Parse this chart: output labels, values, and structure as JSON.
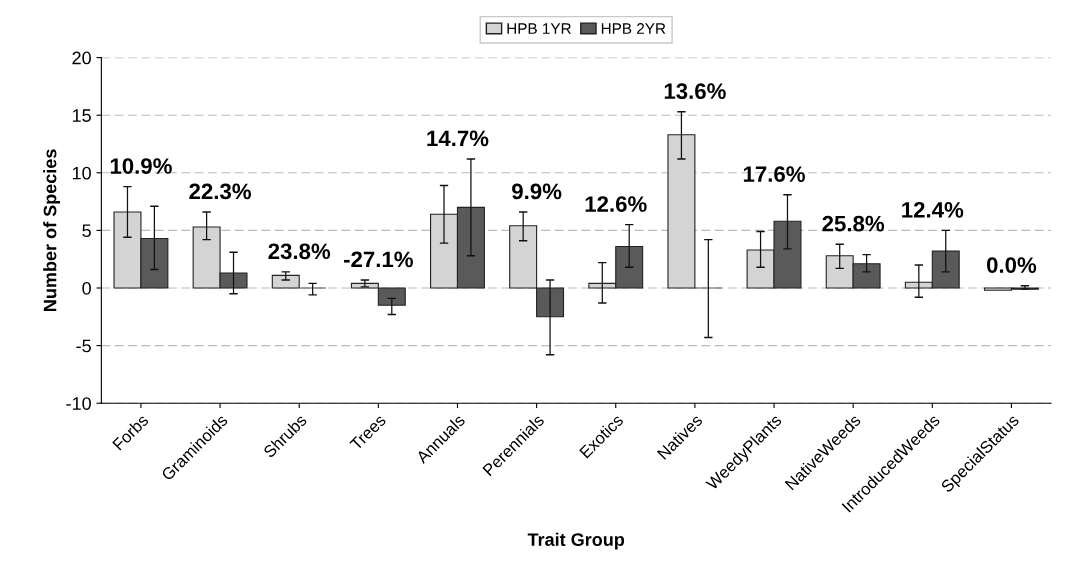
{
  "chart_data": {
    "type": "bar",
    "xlabel": "Trait Group",
    "ylabel": "Number of Species",
    "categories": [
      "Forbs",
      "Graminoids",
      "Shrubs",
      "Trees",
      "Annuals",
      "Perennials",
      "Exotics",
      "Natives",
      "WeedyPlants",
      "NativeWeeds",
      "IntroducedWeeds",
      "SpecialStatus"
    ],
    "series": [
      {
        "name": "HPB 1YR",
        "color": "#d4d4d4",
        "values": [
          6.6,
          5.3,
          1.1,
          0.4,
          6.4,
          5.4,
          0.4,
          13.3,
          3.3,
          2.8,
          0.5,
          -0.2
        ],
        "errors": [
          [
            4.4,
            8.8
          ],
          [
            4.2,
            6.6
          ],
          [
            0.7,
            1.4
          ],
          [
            0.1,
            0.7
          ],
          [
            3.9,
            8.9
          ],
          [
            4.1,
            6.6
          ],
          [
            -1.3,
            2.2
          ],
          [
            11.2,
            15.3
          ],
          [
            1.8,
            4.9
          ],
          [
            1.7,
            3.8
          ],
          [
            -0.8,
            2.0
          ],
          null
        ]
      },
      {
        "name": "HPB 2YR",
        "color": "#5a5a5a",
        "values": [
          4.3,
          1.3,
          0,
          -1.5,
          7.0,
          -2.5,
          3.6,
          0,
          5.8,
          2.1,
          3.2,
          -0.1
        ],
        "errors": [
          [
            1.6,
            7.1
          ],
          [
            -0.5,
            3.1
          ],
          [
            -0.6,
            0.4
          ],
          [
            -2.3,
            -0.9
          ],
          [
            2.8,
            11.2
          ],
          [
            -5.8,
            0.7
          ],
          [
            1.8,
            5.5
          ],
          [
            -4.3,
            4.2
          ],
          [
            3.4,
            8.1
          ],
          [
            1.4,
            2.9
          ],
          [
            1.4,
            5.0
          ],
          [
            -0.1,
            0.2
          ]
        ]
      }
    ],
    "ylim": [
      -10,
      20
    ],
    "yticks": [
      -10,
      -5,
      0,
      5,
      10,
      15,
      20
    ],
    "grid": "y",
    "legend": "top",
    "annotations": [
      "10.9%",
      "22.3%",
      "23.8%",
      "-27.1%",
      "14.7%",
      "9.9%",
      "12.6%",
      "13.6%",
      "17.6%",
      "25.8%",
      "12.4%",
      "0.0%"
    ]
  }
}
